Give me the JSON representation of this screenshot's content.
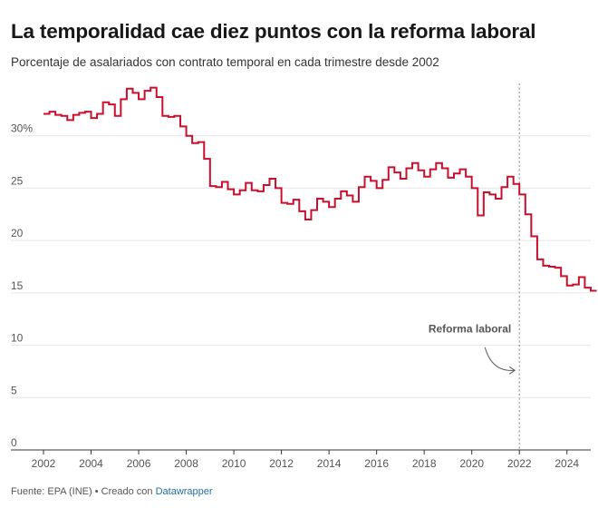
{
  "title": "La temporalidad cae diez puntos con la reforma laboral",
  "subtitle": "Porcentaje de asalariados con contrato temporal en cada trimestre desde 2002",
  "footer": {
    "source": "Fuente: EPA (INE)",
    "separator": " • ",
    "created_with": "Creado con ",
    "tool": "Datawrapper"
  },
  "colors": {
    "line": "#c8102e",
    "grid": "#e6e6e6",
    "axis": "#333333",
    "marker": "#999999"
  },
  "chart_data": {
    "type": "line",
    "step": true,
    "title": "",
    "xlabel": "",
    "ylabel": "",
    "xlim": [
      2002,
      2025
    ],
    "ylim": [
      0,
      35
    ],
    "x_ticks": [
      {
        "value": 2002,
        "label": "2002"
      },
      {
        "value": 2004,
        "label": "2004"
      },
      {
        "value": 2006,
        "label": "2006"
      },
      {
        "value": 2008,
        "label": "2008"
      },
      {
        "value": 2010,
        "label": "2010"
      },
      {
        "value": 2012,
        "label": "2012"
      },
      {
        "value": 2014,
        "label": "2014"
      },
      {
        "value": 2016,
        "label": "2016"
      },
      {
        "value": 2018,
        "label": "2018"
      },
      {
        "value": 2020,
        "label": "2020"
      },
      {
        "value": 2022,
        "label": "2022"
      },
      {
        "value": 2024,
        "label": "2024"
      }
    ],
    "y_ticks": [
      {
        "value": 0,
        "label": "0"
      },
      {
        "value": 5,
        "label": "5"
      },
      {
        "value": 10,
        "label": "10"
      },
      {
        "value": 15,
        "label": "15"
      },
      {
        "value": 20,
        "label": "20"
      },
      {
        "value": 25,
        "label": "25"
      },
      {
        "value": 30,
        "label": "30%"
      }
    ],
    "grid": true,
    "series": [
      {
        "start_year": 2002,
        "quarters_per_year": 4,
        "values": [
          32.1,
          32.3,
          32.0,
          31.9,
          31.5,
          32.0,
          32.2,
          32.3,
          31.7,
          32.1,
          33.2,
          33.0,
          31.9,
          33.5,
          34.5,
          34.1,
          33.5,
          34.3,
          34.6,
          33.7,
          31.9,
          31.8,
          31.9,
          30.9,
          30.0,
          29.3,
          29.4,
          27.8,
          25.2,
          25.1,
          25.6,
          24.9,
          24.4,
          24.8,
          25.5,
          24.8,
          24.7,
          25.3,
          25.9,
          25.0,
          23.6,
          23.5,
          23.9,
          22.8,
          22.0,
          22.9,
          24.0,
          23.7,
          23.2,
          24.0,
          24.7,
          24.3,
          23.7,
          25.1,
          26.1,
          25.7,
          25.0,
          25.8,
          27.0,
          26.5,
          25.9,
          26.9,
          27.4,
          26.7,
          26.1,
          26.8,
          27.4,
          26.9,
          26.0,
          26.4,
          26.8,
          26.1,
          25.0,
          22.4,
          24.6,
          24.4,
          24.0,
          25.1,
          26.1,
          25.4,
          24.4,
          22.5,
          20.4,
          18.2,
          17.6,
          17.5,
          17.4,
          16.6,
          15.7,
          15.8,
          16.5,
          15.5,
          15.2
        ]
      }
    ],
    "annotations": [
      {
        "text": "Reforma laboral",
        "x": 2022,
        "style": "dotted-vertical-line"
      }
    ]
  }
}
